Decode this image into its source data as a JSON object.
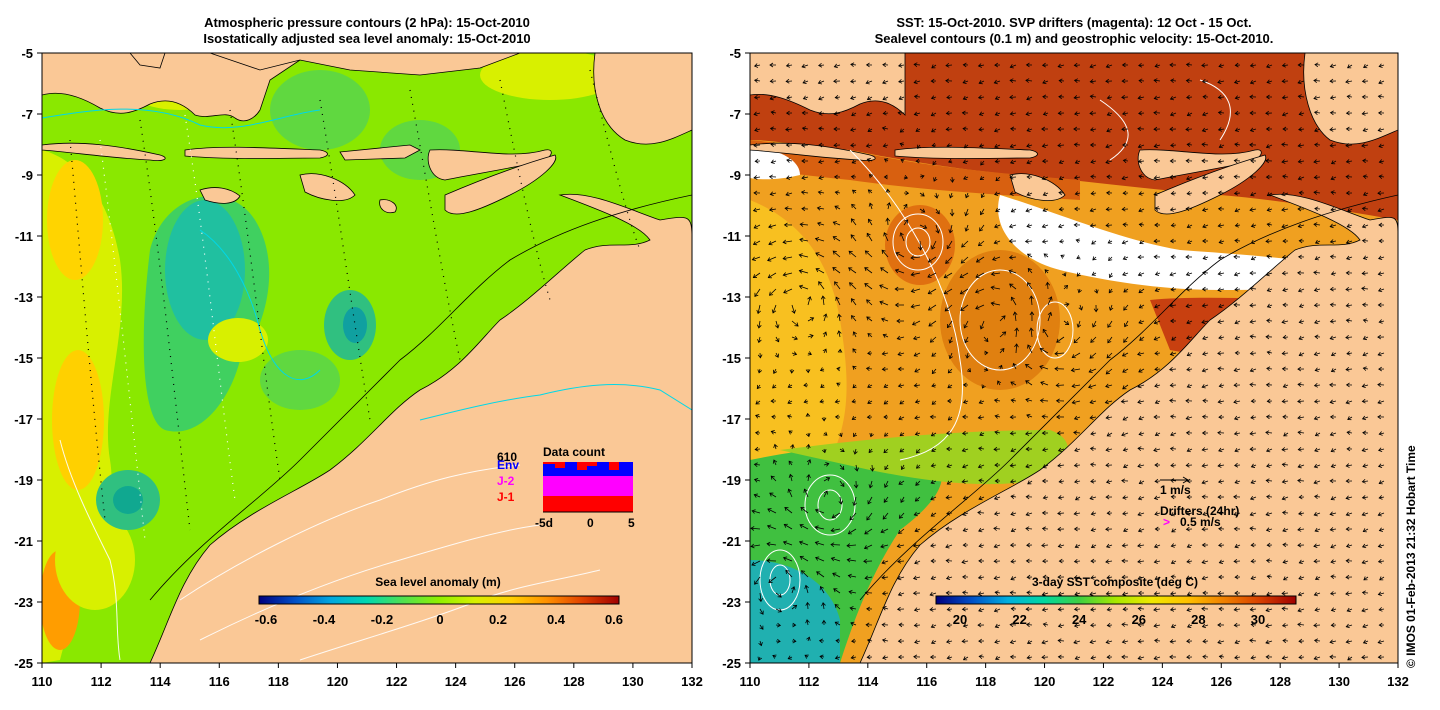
{
  "left_panel": {
    "title_line1": "Atmospheric pressure contours (2 hPa): 15-Oct-2010",
    "title_line2": "Isostatically adjusted sea level anomaly: 15-Oct-2010",
    "colorbar": {
      "label": "Sea level anomaly (m)",
      "tick_labels": [
        "-0.6",
        "-0.4",
        "-0.2",
        "0",
        "0.2",
        "0.4",
        "0.6"
      ],
      "colors": [
        "#00007f",
        "#0050c8",
        "#00a8e0",
        "#00d8b0",
        "#50e050",
        "#90f000",
        "#d8f000",
        "#ffd000",
        "#ff9000",
        "#e04000",
        "#a00000"
      ]
    },
    "data_count": {
      "title": "Data count",
      "max_label": "610",
      "legend": [
        {
          "label": "Env",
          "color": "#0000ff"
        },
        {
          "label": "J-2",
          "color": "#ff00ff"
        },
        {
          "label": "J-1",
          "color": "#ff0000"
        }
      ],
      "x_tick_labels": [
        "-5d",
        "0",
        "5"
      ]
    }
  },
  "right_panel": {
    "title_line1": "SST: 15-Oct-2010. SVP drifters (magenta): 12 Oct - 15 Oct.",
    "title_line2": "Sealevel contours (0.1 m) and geostrophic velocity: 15-Oct-2010.",
    "colorbar": {
      "label": "3-day SST composite (deg C)",
      "tick_labels": [
        "20",
        "22",
        "24",
        "26",
        "28",
        "30"
      ],
      "colors": [
        "#00007f",
        "#0050c8",
        "#00b0e0",
        "#00d8a0",
        "#40d040",
        "#a8e800",
        "#f0e800",
        "#ffc000",
        "#f08000",
        "#d84000",
        "#a00000"
      ]
    },
    "velocity_legend": "1 m/s",
    "drifters_legend": "Drifters (24hr)",
    "drifters_speed": "0.5 m/s",
    "drifters_marker": ">"
  },
  "axes": {
    "x_tick_labels": [
      "110",
      "112",
      "114",
      "116",
      "118",
      "120",
      "122",
      "124",
      "126",
      "128",
      "130",
      "132"
    ],
    "y_tick_labels": [
      "-5",
      "-7",
      "-9",
      "-11",
      "-13",
      "-15",
      "-17",
      "-19",
      "-21",
      "-23",
      "-25"
    ]
  },
  "colors": {
    "land": "#fac896",
    "left_ocean": "#8ae800",
    "right_ocean": "#f0a020"
  },
  "footer_credit": "© IMOS 01-Feb-2013 21:32 Hobart Time"
}
